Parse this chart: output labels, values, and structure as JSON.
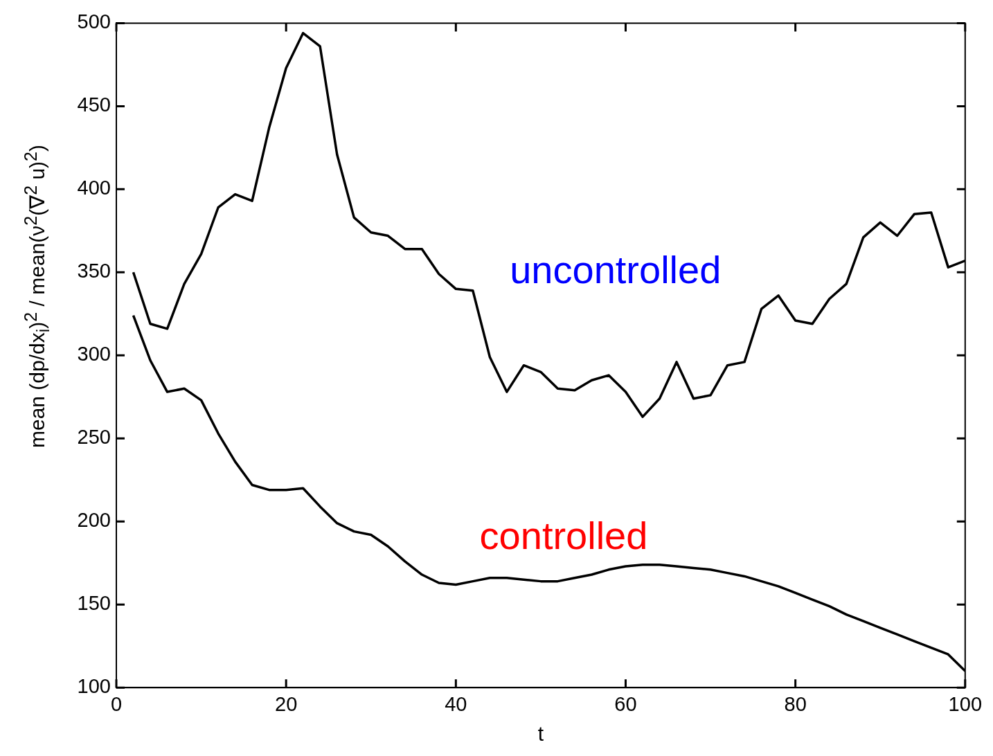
{
  "chart_data": {
    "type": "line",
    "xlabel": "t",
    "ylabel": "mean (dp/dx$_{i}$)$^{2}$ / mean(ν$^{2}$(∇$^{2}$ u)$^{2}$)",
    "x": [
      2,
      4,
      6,
      8,
      10,
      12,
      14,
      16,
      18,
      20,
      22,
      24,
      26,
      28,
      30,
      32,
      34,
      36,
      38,
      40,
      42,
      44,
      46,
      48,
      50,
      52,
      54,
      56,
      58,
      60,
      62,
      64,
      66,
      68,
      70,
      72,
      74,
      76,
      78,
      80,
      82,
      84,
      86,
      88,
      90,
      92,
      94,
      96,
      98,
      100
    ],
    "series": [
      {
        "name": "uncontrolled",
        "color": "#000000",
        "values": [
          350,
          319,
          316,
          343,
          361,
          389,
          397,
          393,
          437,
          473,
          494,
          486,
          421,
          383,
          374,
          372,
          364,
          364,
          349,
          340,
          339,
          299,
          278,
          294,
          290,
          280,
          279,
          285,
          288,
          278,
          263,
          274,
          296,
          274,
          276,
          294,
          296,
          328,
          336,
          321,
          319,
          334,
          343,
          371,
          380,
          372,
          385,
          386,
          353,
          357
        ]
      },
      {
        "name": "controlled",
        "color": "#000000",
        "values": [
          324,
          297,
          278,
          280,
          273,
          253,
          236,
          222,
          219,
          219,
          220,
          209,
          199,
          194,
          192,
          185,
          176,
          168,
          163,
          162,
          164,
          166,
          166,
          165,
          164,
          164,
          166,
          168,
          171,
          173,
          174,
          174,
          173,
          172,
          171,
          169,
          167,
          164,
          161,
          157,
          153,
          149,
          144,
          140,
          136,
          132,
          128,
          124,
          120,
          110
        ]
      }
    ],
    "xlim": [
      0,
      100
    ],
    "xticks": [
      0,
      20,
      40,
      60,
      80,
      100
    ],
    "ylim": [
      100,
      500
    ],
    "yticks": [
      100,
      150,
      200,
      250,
      300,
      350,
      400,
      450,
      500
    ],
    "grid": false,
    "legend": false,
    "marker": "none",
    "line_style": "solid"
  }
}
